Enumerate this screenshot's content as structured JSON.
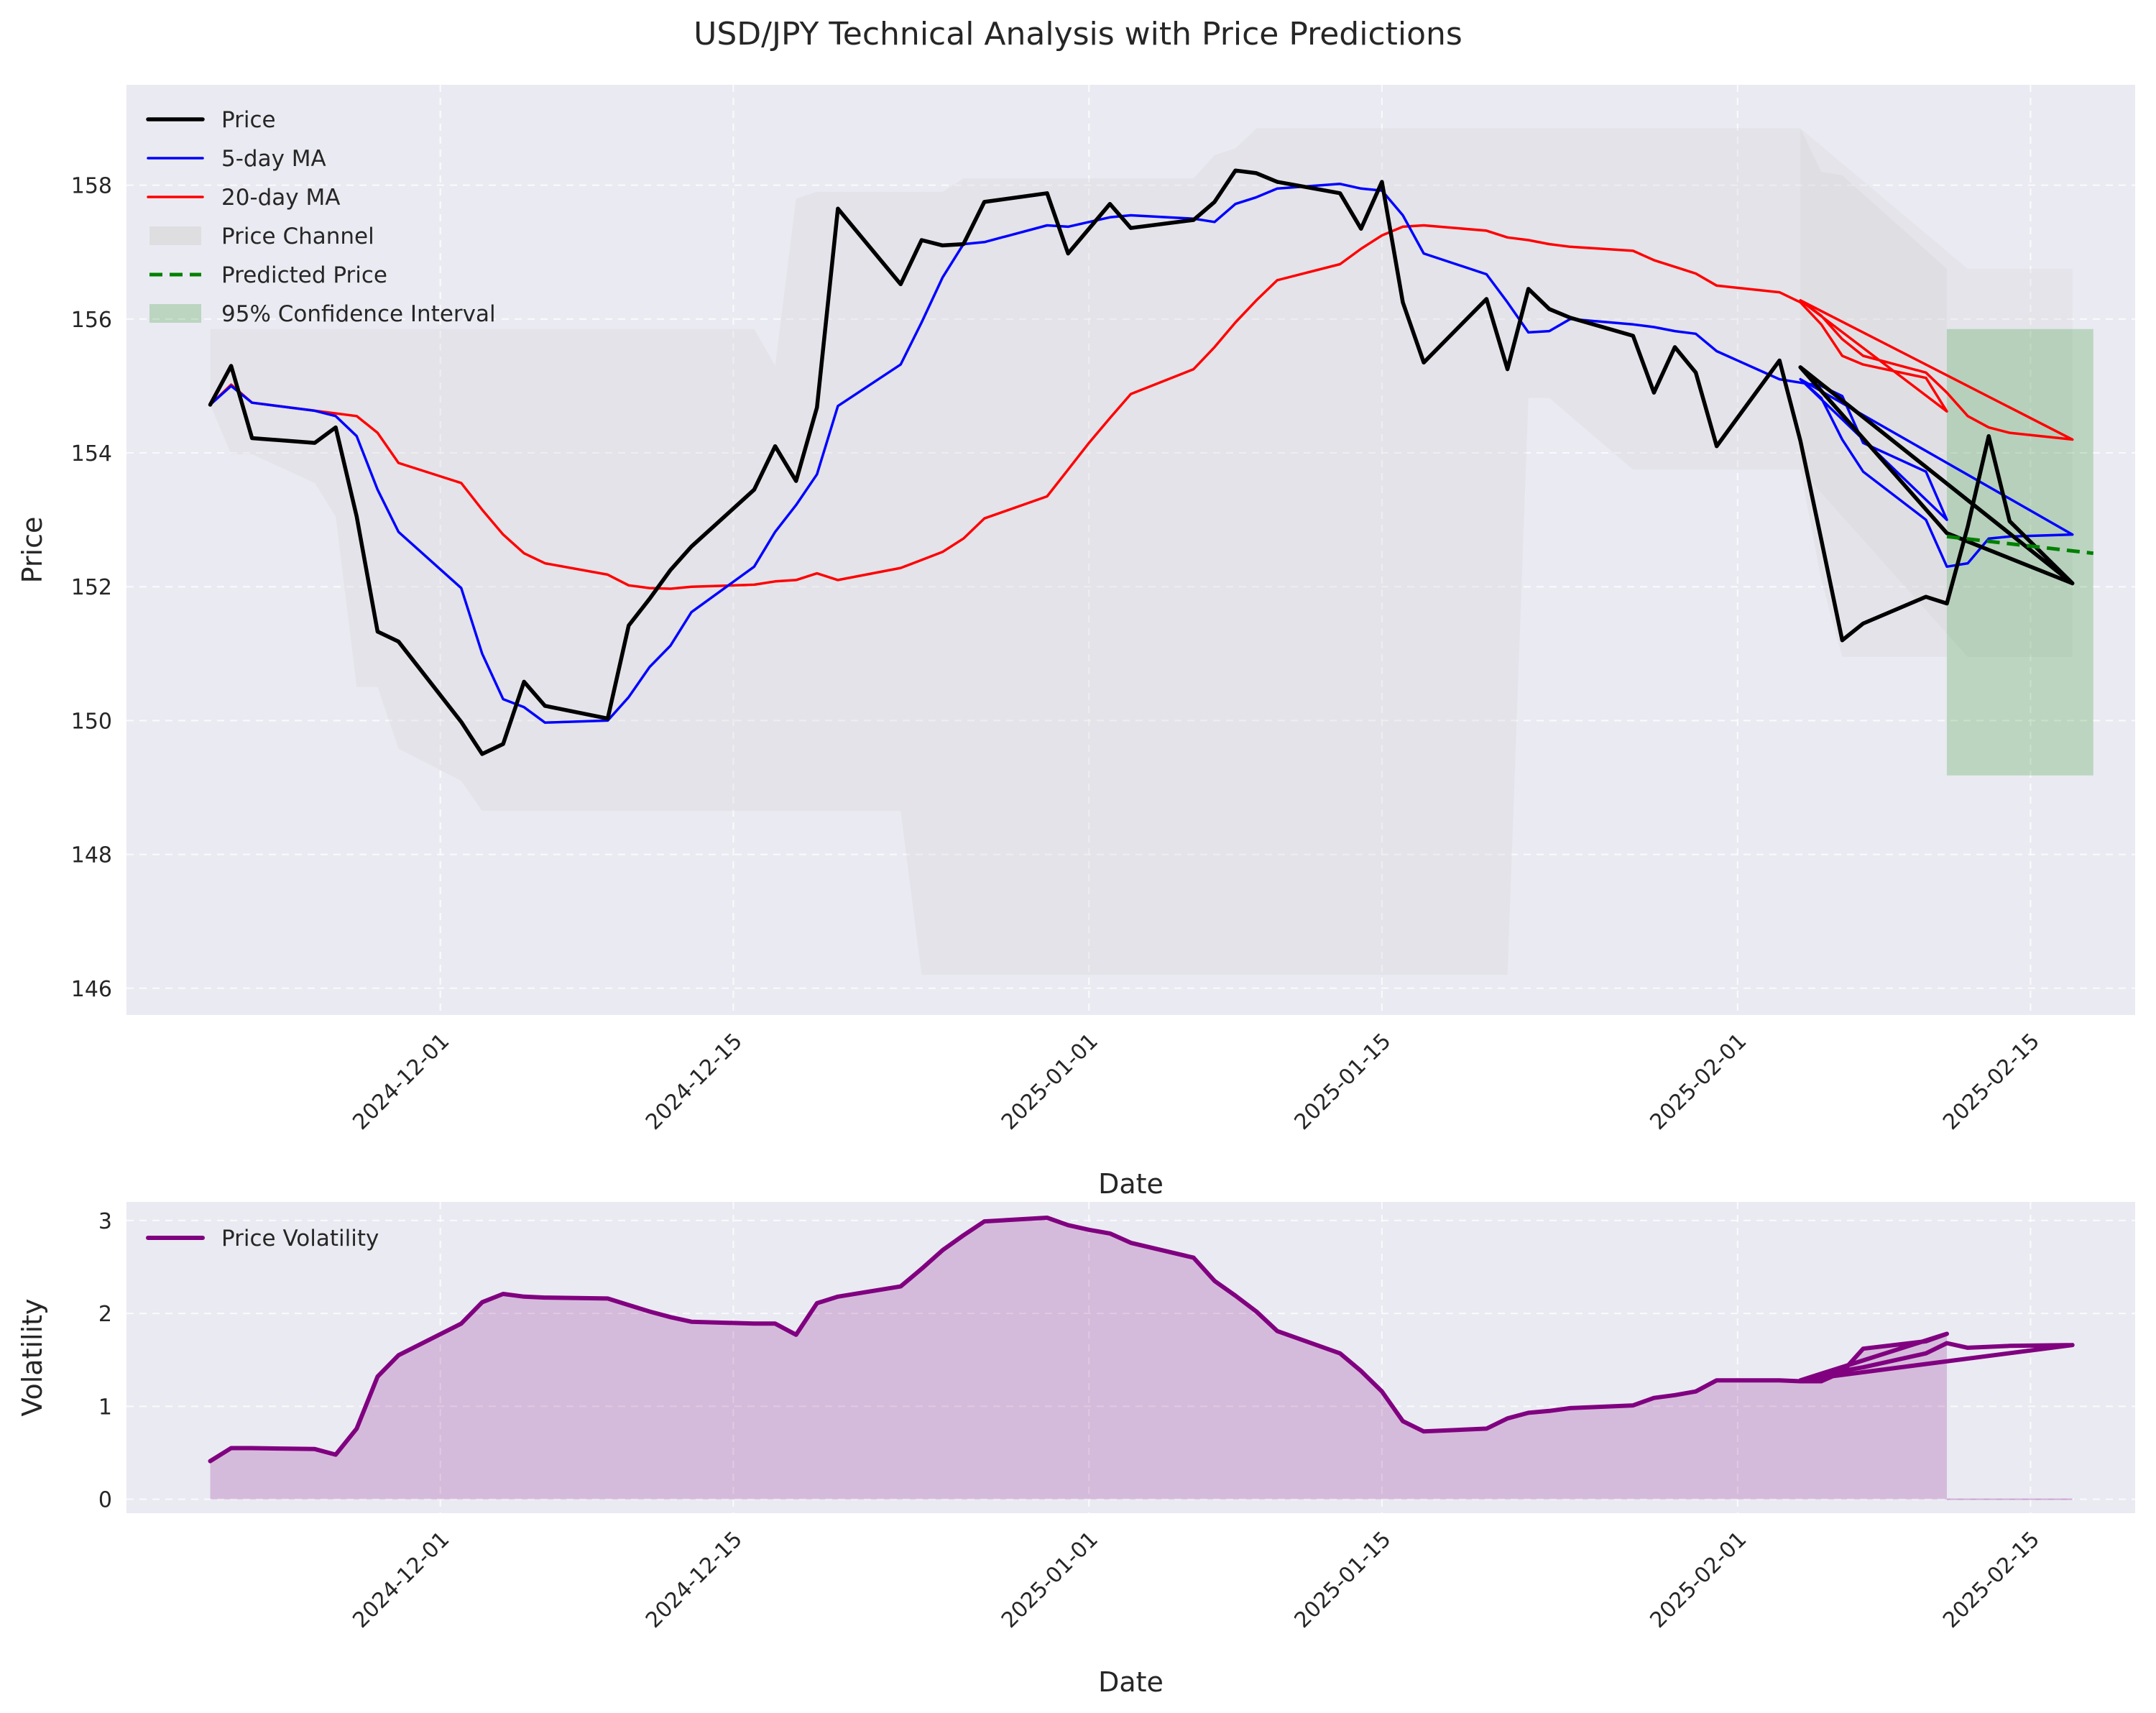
{
  "chart_data": [
    {
      "type": "line",
      "title": "USD/JPY Technical Analysis with Price Predictions",
      "xlabel": "Date",
      "ylabel": "Price",
      "ylim": [
        145.6,
        159.5
      ],
      "xlim": [
        "2024-11-16",
        "2025-02-20"
      ],
      "yticks": [
        146,
        148,
        150,
        152,
        154,
        156,
        158
      ],
      "xticks": [
        "2024-12-01",
        "2024-12-15",
        "2025-01-01",
        "2025-01-15",
        "2025-02-01",
        "2025-02-15"
      ],
      "grid": true,
      "legend_position": "top-left",
      "legend": [
        "Price",
        "5-day MA",
        "20-day MA",
        "Price Channel",
        "Predicted Price",
        "95% Confidence Interval"
      ],
      "colors": {
        "price": "#000000",
        "ma5": "#0000ff",
        "ma20": "#ff0000",
        "channel": "#d3d3d3",
        "predicted": "#008000",
        "ci": "#008000"
      },
      "series": [
        {
          "name": "Price",
          "x": [
            "2024-11-20",
            "2024-11-21",
            "2024-11-22",
            "2024-11-25",
            "2024-11-26",
            "2024-11-27",
            "2024-11-28",
            "2024-11-29",
            "2024-12-02",
            "2024-12-03",
            "2024-12-04",
            "2024-12-05",
            "2024-12-06",
            "2024-12-09",
            "2024-12-10",
            "2024-12-11",
            "2024-12-12",
            "2024-12-13",
            "2024-12-16",
            "2024-12-17",
            "2024-12-18",
            "2024-12-19",
            "2024-12-20",
            "2024-12-23",
            "2024-12-24",
            "2024-12-25",
            "2024-12-26",
            "2024-12-27",
            "2024-12-30",
            "2024-12-31",
            "2025-01-01",
            "2025-01-02",
            "2025-01-03",
            "2025-01-06",
            "2025-01-07",
            "2025-01-08",
            "2025-01-09",
            "2025-01-10",
            "2025-01-13",
            "2025-01-14",
            "2025-01-15",
            "2025-01-16",
            "2025-01-17",
            "2025-01-20",
            "2025-01-21",
            "2025-01-22",
            "2025-01-23",
            "2025-01-24",
            "2025-01-27",
            "2025-01-28",
            "2025-01-29",
            "2025-01-30",
            "2025-01-31",
            "2025-02-03",
            "2025-02-04",
            "2025-02-05",
            "2025-02-06",
            "2025-02-07",
            "2025-02-10",
            "2025-02-11",
            "2025-02-12",
            "2025-02-13",
            "2025-02-14",
            "2025-02-17",
            "2025-02-04",
            "2025-02-11",
            "2025-02-17"
          ],
          "values": [
            154.72,
            155.3,
            154.22,
            154.15,
            154.38,
            153.05,
            151.33,
            151.18,
            149.98,
            149.5,
            149.65,
            150.58,
            150.22,
            150.03,
            151.42,
            151.82,
            152.25,
            152.6,
            153.45,
            154.1,
            153.58,
            154.68,
            157.65,
            156.52,
            157.18,
            157.1,
            157.12,
            157.75,
            157.88,
            156.98,
            157.35,
            157.72,
            157.36,
            157.48,
            157.75,
            158.22,
            158.18,
            158.05,
            157.88,
            157.35,
            158.05,
            156.25,
            155.35,
            156.3,
            155.25,
            156.45,
            156.15,
            156.02,
            155.75,
            154.9,
            155.58,
            155.2,
            154.1,
            155.38,
            154.18,
            152.7,
            151.2,
            151.45,
            151.85,
            151.75,
            152.9,
            154.25,
            152.98,
            152.05,
            155.28,
            152.8,
            152.05
          ]
        },
        {
          "name": "5-day MA",
          "x": [
            "2024-11-20",
            "2024-11-21",
            "2024-11-22",
            "2024-11-25",
            "2024-11-26",
            "2024-11-27",
            "2024-11-28",
            "2024-11-29",
            "2024-12-02",
            "2024-12-03",
            "2024-12-04",
            "2024-12-05",
            "2024-12-06",
            "2024-12-09",
            "2024-12-10",
            "2024-12-11",
            "2024-12-12",
            "2024-12-13",
            "2024-12-16",
            "2024-12-17",
            "2024-12-18",
            "2024-12-19",
            "2024-12-20",
            "2024-12-23",
            "2024-12-24",
            "2024-12-25",
            "2024-12-26",
            "2024-12-27",
            "2024-12-30",
            "2024-12-31",
            "2025-01-01",
            "2025-01-02",
            "2025-01-03",
            "2025-01-06",
            "2025-01-07",
            "2025-01-08",
            "2025-01-09",
            "2025-01-10",
            "2025-01-13",
            "2025-01-14",
            "2025-01-15",
            "2025-01-16",
            "2025-01-17",
            "2025-01-20",
            "2025-01-21",
            "2025-01-22",
            "2025-01-23",
            "2025-01-24",
            "2025-01-27",
            "2025-01-28",
            "2025-01-29",
            "2025-01-30",
            "2025-01-31",
            "2025-02-03",
            "2025-02-04",
            "2025-02-05",
            "2025-02-06",
            "2025-02-07",
            "2025-02-10",
            "2025-02-11",
            "2025-02-04",
            "2025-02-05",
            "2025-02-06",
            "2025-02-07",
            "2025-02-10",
            "2025-02-11",
            "2025-02-12",
            "2025-02-13",
            "2025-02-14",
            "2025-02-17",
            "2025-02-04",
            "2025-02-17"
          ],
          "values": [
            154.72,
            155.0,
            154.75,
            154.63,
            154.55,
            154.25,
            153.45,
            152.82,
            151.98,
            151.0,
            150.32,
            150.2,
            149.97,
            150.0,
            150.35,
            150.8,
            151.12,
            151.62,
            152.3,
            152.82,
            153.22,
            153.68,
            154.7,
            155.32,
            155.95,
            156.62,
            157.12,
            157.15,
            157.4,
            157.38,
            157.45,
            157.52,
            157.55,
            157.5,
            157.45,
            157.72,
            157.82,
            157.95,
            158.02,
            157.95,
            157.92,
            157.55,
            156.98,
            156.67,
            156.25,
            155.8,
            155.82,
            156.0,
            155.92,
            155.88,
            155.82,
            155.78,
            155.52,
            155.1,
            155.05,
            155.0,
            154.85,
            154.15,
            153.72,
            153.0,
            155.1,
            154.82,
            154.2,
            153.72,
            153.0,
            152.3,
            152.35,
            152.72,
            152.75,
            152.78,
            155.1,
            152.78
          ]
        },
        {
          "name": "20-day MA",
          "x": [
            "2024-11-20",
            "2024-11-21",
            "2024-11-22",
            "2024-11-27",
            "2024-11-28",
            "2024-11-29",
            "2024-12-02",
            "2024-12-03",
            "2024-12-04",
            "2024-12-05",
            "2024-12-06",
            "2024-12-09",
            "2024-12-10",
            "2024-12-11",
            "2024-12-12",
            "2024-12-13",
            "2024-12-16",
            "2024-12-17",
            "2024-12-18",
            "2024-12-19",
            "2024-12-20",
            "2024-12-23",
            "2024-12-24",
            "2024-12-25",
            "2024-12-26",
            "2024-12-27",
            "2024-12-30",
            "2024-12-31",
            "2025-01-01",
            "2025-01-02",
            "2025-01-03",
            "2025-01-06",
            "2025-01-07",
            "2025-01-08",
            "2025-01-09",
            "2025-01-10",
            "2025-01-13",
            "2025-01-14",
            "2025-01-15",
            "2025-01-16",
            "2025-01-17",
            "2025-01-20",
            "2025-01-21",
            "2025-01-22",
            "2025-01-23",
            "2025-01-24",
            "2025-01-27",
            "2025-01-28",
            "2025-01-29",
            "2025-01-30",
            "2025-01-31",
            "2025-02-03",
            "2025-02-04",
            "2025-02-05",
            "2025-02-06",
            "2025-02-07",
            "2025-02-10",
            "2025-02-11",
            "2025-02-04",
            "2025-02-05",
            "2025-02-06",
            "2025-02-07",
            "2025-02-10",
            "2025-02-11",
            "2025-02-12",
            "2025-02-13",
            "2025-02-14",
            "2025-02-17",
            "2025-02-04",
            "2025-02-17"
          ],
          "values": [
            154.72,
            155.02,
            154.75,
            154.55,
            154.3,
            153.85,
            153.55,
            153.15,
            152.78,
            152.5,
            152.35,
            152.18,
            152.02,
            151.98,
            151.97,
            152.0,
            152.03,
            152.08,
            152.1,
            152.2,
            152.1,
            152.28,
            152.4,
            152.52,
            152.72,
            153.02,
            153.35,
            153.75,
            154.15,
            154.52,
            154.88,
            155.25,
            155.58,
            155.95,
            156.28,
            156.58,
            156.82,
            157.05,
            157.25,
            157.38,
            157.4,
            157.32,
            157.22,
            157.18,
            157.12,
            157.08,
            157.02,
            156.88,
            156.78,
            156.68,
            156.5,
            156.4,
            156.25,
            155.92,
            155.45,
            155.32,
            155.12,
            154.62,
            156.28,
            156.05,
            155.7,
            155.45,
            155.2,
            154.9,
            154.55,
            154.38,
            154.3,
            154.2,
            156.28,
            154.2
          ]
        },
        {
          "name": "Predicted Price",
          "x": [
            "2025-02-11",
            "2025-02-18"
          ],
          "values": [
            152.75,
            152.5
          ],
          "style": "dashed"
        }
      ],
      "price_channel": {
        "name": "Price Channel",
        "x": [
          "2024-11-20",
          "2024-11-21",
          "2024-11-22",
          "2024-11-25",
          "2024-11-26",
          "2024-11-27",
          "2024-11-28",
          "2024-11-29",
          "2024-12-02",
          "2024-12-03",
          "2024-12-16",
          "2024-12-17",
          "2024-12-18",
          "2024-12-19",
          "2024-12-23",
          "2024-12-24",
          "2024-12-25",
          "2024-12-26",
          "2024-12-27",
          "2025-01-06",
          "2025-01-07",
          "2025-01-08",
          "2025-01-09",
          "2025-01-21",
          "2025-01-22",
          "2025-01-23",
          "2025-01-27",
          "2025-02-03",
          "2025-02-04",
          "2025-02-05",
          "2025-02-06",
          "2025-02-11"
        ],
        "upper": [
          155.85,
          155.85,
          155.85,
          155.85,
          155.85,
          155.85,
          155.85,
          155.85,
          155.85,
          155.85,
          155.85,
          155.3,
          157.8,
          157.9,
          157.9,
          157.9,
          157.9,
          158.1,
          158.1,
          158.1,
          158.45,
          158.55,
          158.85,
          158.85,
          158.85,
          158.85,
          158.85,
          158.85,
          158.85,
          158.2,
          158.15,
          156.75
        ],
        "lower": [
          154.72,
          153.98,
          153.98,
          153.55,
          153.05,
          150.5,
          150.5,
          149.58,
          149.1,
          148.65,
          148.65,
          148.65,
          148.65,
          148.65,
          148.65,
          146.2,
          146.2,
          146.2,
          146.2,
          146.2,
          146.2,
          146.2,
          146.2,
          146.2,
          154.82,
          154.82,
          153.75,
          153.75,
          153.75,
          152.1,
          150.95,
          150.95
        ],
        "overlap_region": {
          "x": [
            "2025-02-04",
            "2025-02-12",
            "2025-02-17"
          ],
          "upper": [
            158.85,
            156.75,
            156.75
          ],
          "lower": [
            153.75,
            150.95,
            150.95
          ]
        }
      },
      "confidence_interval": {
        "name": "95% Confidence Interval",
        "x_start": "2025-02-11",
        "x_end": "2025-02-18",
        "lower": 149.18,
        "upper": 155.85
      }
    },
    {
      "type": "area",
      "title": "",
      "xlabel": "Date",
      "ylabel": "Volatility",
      "ylim": [
        -0.15,
        3.2
      ],
      "xlim": [
        "2024-11-16",
        "2025-02-20"
      ],
      "yticks": [
        0,
        1,
        2,
        3
      ],
      "xticks": [
        "2024-12-01",
        "2024-12-15",
        "2025-01-01",
        "2025-01-15",
        "2025-02-01",
        "2025-02-15"
      ],
      "grid": true,
      "legend_position": "top-left",
      "legend": [
        "Price Volatility"
      ],
      "colors": {
        "line": "#800080",
        "fill": "#800080"
      },
      "series": [
        {
          "name": "Price Volatility",
          "x": [
            "2024-11-20",
            "2024-11-21",
            "2024-11-22",
            "2024-11-25",
            "2024-11-26",
            "2024-11-27",
            "2024-11-28",
            "2024-11-29",
            "2024-12-02",
            "2024-12-03",
            "2024-12-04",
            "2024-12-05",
            "2024-12-06",
            "2024-12-09",
            "2024-12-10",
            "2024-12-11",
            "2024-12-12",
            "2024-12-13",
            "2024-12-16",
            "2024-12-17",
            "2024-12-18",
            "2024-12-19",
            "2024-12-20",
            "2024-12-23",
            "2024-12-24",
            "2024-12-25",
            "2024-12-26",
            "2024-12-27",
            "2024-12-30",
            "2024-12-31",
            "2025-01-01",
            "2025-01-02",
            "2025-01-03",
            "2025-01-06",
            "2025-01-07",
            "2025-01-08",
            "2025-01-09",
            "2025-01-10",
            "2025-01-13",
            "2025-01-14",
            "2025-01-15",
            "2025-01-16",
            "2025-01-17",
            "2025-01-20",
            "2025-01-21",
            "2025-01-22",
            "2025-01-23",
            "2025-01-24",
            "2025-01-27",
            "2025-01-28",
            "2025-01-29",
            "2025-01-30",
            "2025-01-31",
            "2025-02-03",
            "2025-02-04",
            "2025-02-05",
            "2025-02-06",
            "2025-02-07",
            "2025-02-10",
            "2025-02-11",
            "2025-02-04",
            "2025-02-05",
            "2025-02-06",
            "2025-02-07",
            "2025-02-10",
            "2025-02-11",
            "2025-02-12",
            "2025-02-13",
            "2025-02-14",
            "2025-02-17",
            "2025-02-04",
            "2025-02-17"
          ],
          "values": [
            0.41,
            0.55,
            0.55,
            0.54,
            0.48,
            0.76,
            1.32,
            1.55,
            1.89,
            2.12,
            2.21,
            2.18,
            2.17,
            2.16,
            2.09,
            2.02,
            1.96,
            1.91,
            1.89,
            1.89,
            1.77,
            2.11,
            2.18,
            2.29,
            2.48,
            2.68,
            2.84,
            2.99,
            3.03,
            2.95,
            2.9,
            2.86,
            2.76,
            2.6,
            2.35,
            2.19,
            2.02,
            1.81,
            1.57,
            1.38,
            1.16,
            0.84,
            0.73,
            0.76,
            0.87,
            0.93,
            0.95,
            0.98,
            1.01,
            1.09,
            1.12,
            1.16,
            1.28,
            1.28,
            1.27,
            1.27,
            1.37,
            1.62,
            1.7,
            1.78,
            1.28,
            1.31,
            1.38,
            1.42,
            1.57,
            1.68,
            1.63,
            1.64,
            1.65,
            1.66,
            1.28,
            1.66
          ]
        }
      ],
      "fill_region": {
        "x_start": "2024-11-20",
        "x_end": "2025-02-11",
        "baseline": 0
      }
    }
  ]
}
